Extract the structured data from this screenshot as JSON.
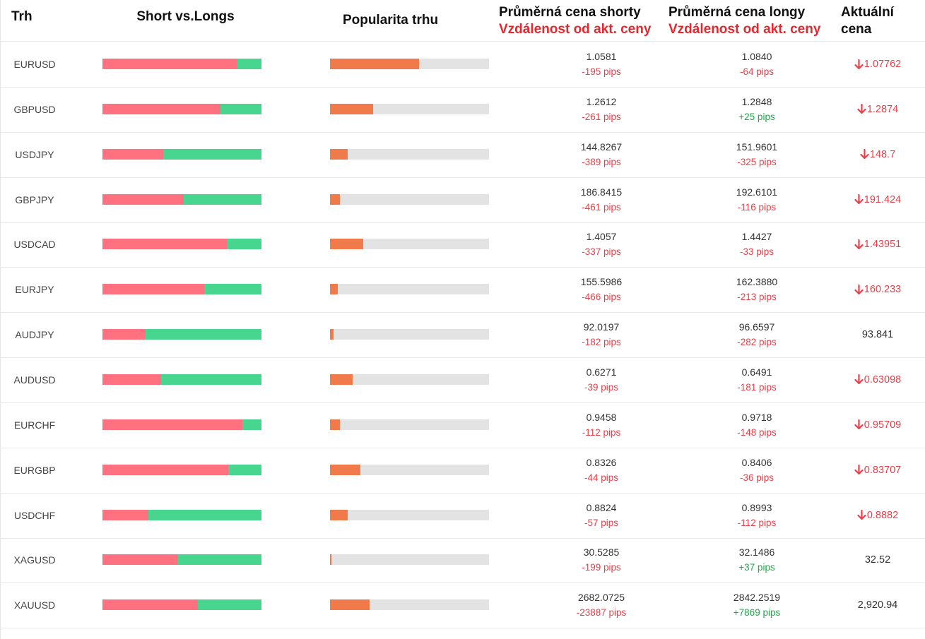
{
  "header": {
    "market": "Trh",
    "short_vs_longs": "Short vs.Longs",
    "popularity": "Popularita trhu",
    "avg_short_title": "Průměrná cena shorty",
    "avg_short_sub": "Vzdálenost od akt. ceny",
    "avg_long_title": "Průměrná cena longy",
    "avg_long_sub": "Vzdálenost od akt. ceny",
    "current_price": "Aktuální cena"
  },
  "colors": {
    "short": "#ff717f",
    "long": "#48d68e",
    "popularity": "#f07a4a",
    "negative": "#e8404a",
    "positive": "#20a84a"
  },
  "rows": [
    {
      "pair": "EURUSD",
      "short_pct": 85,
      "popularity_pct": 56,
      "avg_short": "1.0581",
      "short_pips": "-195 pips",
      "avg_long": "1.0840",
      "long_pips": "-64 pips",
      "current": "1.07762",
      "trend": "down",
      "icon": "arrow-down-icon"
    },
    {
      "pair": "GBPUSD",
      "short_pct": 74,
      "popularity_pct": 27,
      "avg_short": "1.2612",
      "short_pips": "-261 pips",
      "avg_long": "1.2848",
      "long_pips": "+25 pips",
      "current": "1.2874",
      "trend": "down",
      "icon": "arrow-down-icon"
    },
    {
      "pair": "USDJPY",
      "short_pct": 38,
      "popularity_pct": 11,
      "avg_short": "144.8267",
      "short_pips": "-389 pips",
      "avg_long": "151.9601",
      "long_pips": "-325 pips",
      "current": "148.7",
      "trend": "down",
      "icon": "arrow-down-icon"
    },
    {
      "pair": "GBPJPY",
      "short_pct": 51,
      "popularity_pct": 6,
      "avg_short": "186.8415",
      "short_pips": "-461 pips",
      "avg_long": "192.6101",
      "long_pips": "-116 pips",
      "current": "191.424",
      "trend": "down",
      "icon": "arrow-down-icon"
    },
    {
      "pair": "USDCAD",
      "short_pct": 78,
      "popularity_pct": 21,
      "avg_short": "1.4057",
      "short_pips": "-337 pips",
      "avg_long": "1.4427",
      "long_pips": "-33 pips",
      "current": "1.43951",
      "trend": "down",
      "icon": "arrow-down-icon"
    },
    {
      "pair": "EURJPY",
      "short_pct": 64,
      "popularity_pct": 5,
      "avg_short": "155.5986",
      "short_pips": "-466 pips",
      "avg_long": "162.3880",
      "long_pips": "-213 pips",
      "current": "160.233",
      "trend": "down",
      "icon": "arrow-down-icon"
    },
    {
      "pair": "AUDJPY",
      "short_pct": 27,
      "popularity_pct": 2,
      "avg_short": "92.0197",
      "short_pips": "-182 pips",
      "avg_long": "96.6597",
      "long_pips": "-282 pips",
      "current": "93.841",
      "trend": "flat",
      "icon": ""
    },
    {
      "pair": "AUDUSD",
      "short_pct": 37,
      "popularity_pct": 14,
      "avg_short": "0.6271",
      "short_pips": "-39 pips",
      "avg_long": "0.6491",
      "long_pips": "-181 pips",
      "current": "0.63098",
      "trend": "down",
      "icon": "arrow-down-icon"
    },
    {
      "pair": "EURCHF",
      "short_pct": 88,
      "popularity_pct": 6,
      "avg_short": "0.9458",
      "short_pips": "-112 pips",
      "avg_long": "0.9718",
      "long_pips": "-148 pips",
      "current": "0.95709",
      "trend": "down",
      "icon": "arrow-down-icon"
    },
    {
      "pair": "EURGBP",
      "short_pct": 79,
      "popularity_pct": 19,
      "avg_short": "0.8326",
      "short_pips": "-44 pips",
      "avg_long": "0.8406",
      "long_pips": "-36 pips",
      "current": "0.83707",
      "trend": "down",
      "icon": "arrow-down-icon"
    },
    {
      "pair": "USDCHF",
      "short_pct": 29,
      "popularity_pct": 11,
      "avg_short": "0.8824",
      "short_pips": "-57 pips",
      "avg_long": "0.8993",
      "long_pips": "-112 pips",
      "current": "0.8882",
      "trend": "down",
      "icon": "arrow-down-icon"
    },
    {
      "pair": "XAGUSD",
      "short_pct": 47,
      "popularity_pct": 1,
      "avg_short": "30.5285",
      "short_pips": "-199 pips",
      "avg_long": "32.1486",
      "long_pips": "+37 pips",
      "current": "32.52",
      "trend": "flat",
      "icon": ""
    },
    {
      "pair": "XAUUSD",
      "short_pct": 60,
      "popularity_pct": 25,
      "avg_short": "2682.0725",
      "short_pips": "-23887 pips",
      "avg_long": "2842.2519",
      "long_pips": "+7869 pips",
      "current": "2,920.94",
      "trend": "flat",
      "icon": ""
    }
  ]
}
